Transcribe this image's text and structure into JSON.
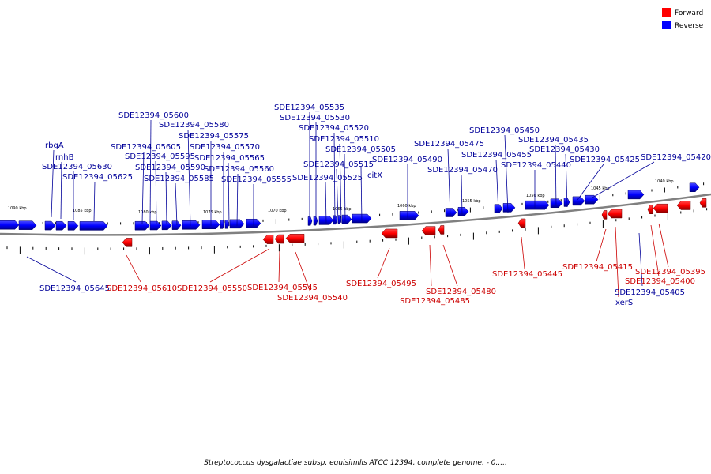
{
  "caption": "Streptococcus dysgalactiae subsp. equisimilis ATCC 12394, complete genome. - 0.....",
  "legend": [
    {
      "label": "Forward",
      "color": "#ff0000"
    },
    {
      "label": "Reverse",
      "color": "#0000ff"
    }
  ],
  "colors": {
    "forward": "#ff0000",
    "forward_dark": "#990000",
    "reverse": "#0000ff",
    "reverse_dark": "#000088",
    "forward_label": "#cc0000",
    "reverse_label": "#000099",
    "backbone": "#808080"
  },
  "ticks": [
    "1090 kbp",
    "1085 kbp",
    "1080 kbp",
    "1075 kbp",
    "1070 kbp",
    "1065 kbp",
    "1060 kbp",
    "1055 kbp",
    "1050 kbp",
    "1045 kbp",
    "1040 kbp"
  ],
  "reverse_labels": [
    "rbgA",
    "rnhB",
    "SDE12394_05630",
    "SDE12394_05625",
    "SDE12394_05605",
    "SDE12394_05600",
    "SDE12394_05595",
    "SDE12394_05590",
    "SDE12394_05585",
    "SDE12394_05580",
    "SDE12394_05575",
    "SDE12394_05570",
    "SDE12394_05565",
    "SDE12394_05560",
    "SDE12394_05555",
    "SDE12394_05535",
    "SDE12394_05530",
    "SDE12394_05525",
    "SDE12394_05520",
    "SDE12394_05515",
    "SDE12394_05510",
    "SDE12394_05505",
    "citX",
    "SDE12394_05490",
    "SDE12394_05475",
    "SDE12394_05470",
    "SDE12394_05455",
    "SDE12394_05450",
    "SDE12394_05440",
    "SDE12394_05435",
    "SDE12394_05430",
    "SDE12394_05425",
    "SDE12394_05420",
    "SDE12394_05645",
    "SDE12394_05405",
    "xerS"
  ],
  "forward_labels": [
    "SDE12394_05610",
    "SDE12394_05550",
    "SDE12394_05545",
    "SDE12394_05540",
    "SDE12394_05495",
    "SDE12394_05480",
    "SDE12394_05485",
    "SDE12394_05445",
    "SDE12394_05415",
    "SDE12394_05400",
    "SDE12394_05395"
  ]
}
